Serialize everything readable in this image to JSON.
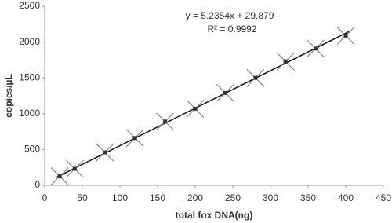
{
  "chart_data": {
    "type": "scatter",
    "x_label": "total  fox DNA(ng)",
    "y_label": "copies/µL",
    "x": [
      20,
      40,
      80,
      120,
      160,
      200,
      240,
      280,
      320,
      360,
      400
    ],
    "series": [
      {
        "color": "#333333",
        "values": [
          125,
          230,
          460,
          660,
          890,
          1070,
          1290,
          1500,
          1730,
          1910,
          2090
        ]
      }
    ],
    "trendline": {
      "equation": "y = 5.2354x + 29.879",
      "slope": 5.2354,
      "intercept": 29.879,
      "r2": "R² = 0.9992"
    },
    "xlim": [
      0,
      450
    ],
    "xticks": [
      0,
      50,
      100,
      150,
      200,
      250,
      300,
      350,
      400,
      450
    ],
    "ylim": [
      0,
      2500
    ],
    "yticks": [
      0,
      500,
      1000,
      1500,
      2000,
      2500
    ],
    "grid": false
  }
}
